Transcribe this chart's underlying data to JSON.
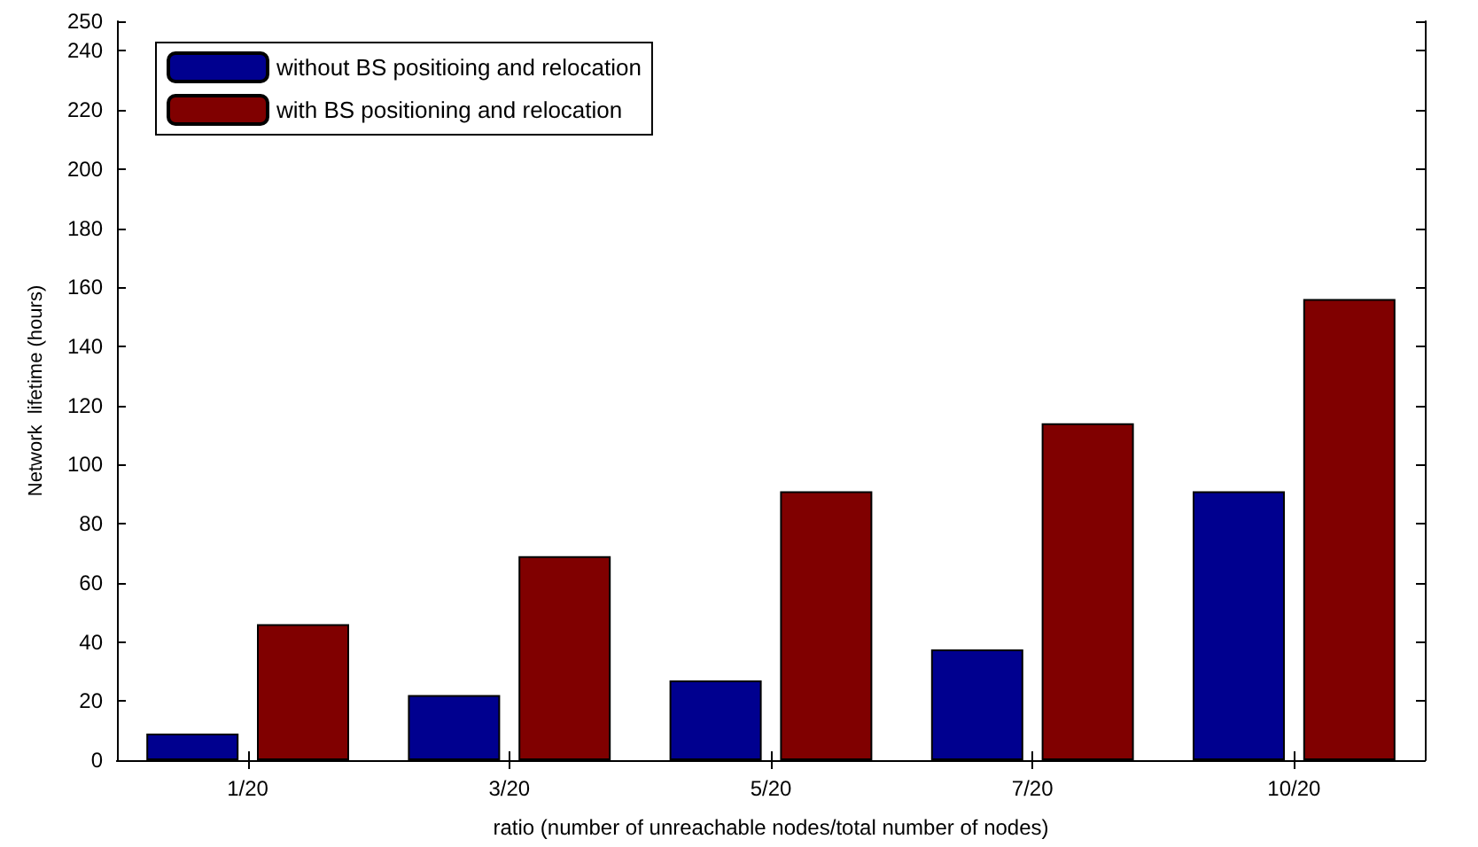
{
  "chart_data": {
    "type": "bar",
    "xlabel": "ratio (number of unreachable nodes/total number of nodes)",
    "ylabel": "Network  lifetime (hours)",
    "categories": [
      "1/20",
      "3/20",
      "5/20",
      "7/20",
      "10/20"
    ],
    "series": [
      {
        "name": "without BS positioing and relocation",
        "color": "#00008f",
        "values": [
          9,
          22,
          27,
          37.5,
          91
        ]
      },
      {
        "name": "with BS positioning and relocation",
        "color": "#800000",
        "values": [
          46,
          69,
          91,
          114,
          156
        ]
      }
    ],
    "ylim": [
      0,
      250
    ],
    "yticks": [
      0,
      20,
      40,
      60,
      80,
      100,
      120,
      140,
      160,
      180,
      200,
      220,
      240,
      250
    ],
    "grid": false,
    "legend": "top left"
  }
}
